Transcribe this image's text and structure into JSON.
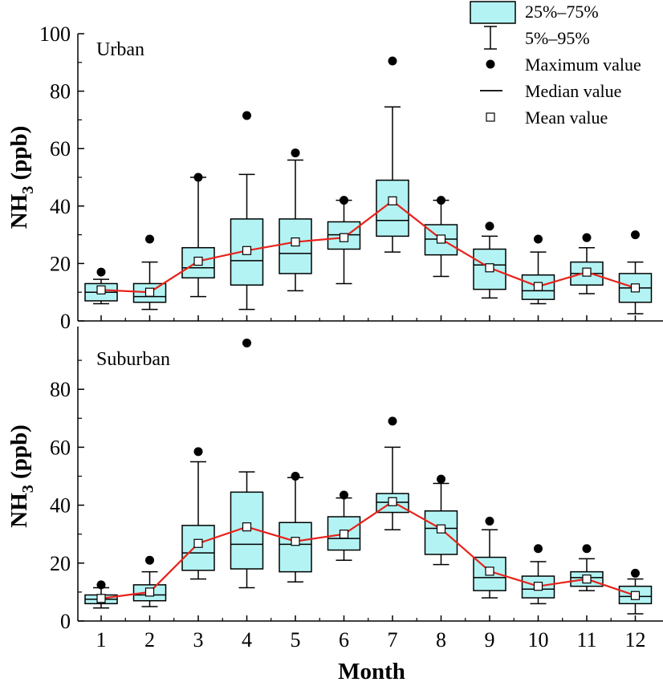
{
  "chart_data": [
    {
      "type": "box",
      "panel_label": "Urban",
      "ylabel_base": "NH",
      "ylabel_sub": "3",
      "ylabel_unit": " (ppb)",
      "xlabel": "",
      "ylim": [
        0,
        100
      ],
      "yticks": [
        0,
        20,
        40,
        60,
        80,
        100
      ],
      "categories": [
        "1",
        "2",
        "3",
        "4",
        "5",
        "6",
        "7",
        "8",
        "9",
        "10",
        "11",
        "12"
      ],
      "boxes": [
        {
          "p5": 6.0,
          "q1": 7.0,
          "median": 10.0,
          "q3": 13.0,
          "p95": 14.5,
          "max": 17.0,
          "mean": 10.8
        },
        {
          "p5": 4.0,
          "q1": 6.5,
          "median": 8.5,
          "q3": 13.0,
          "p95": 20.5,
          "max": 28.5,
          "mean": 10.0
        },
        {
          "p5": 8.5,
          "q1": 15.0,
          "median": 18.5,
          "q3": 25.5,
          "p95": 50.0,
          "max": 50.0,
          "mean": 20.8
        },
        {
          "p5": 4.0,
          "q1": 12.5,
          "median": 21.0,
          "q3": 35.5,
          "p95": 51.0,
          "max": 71.5,
          "mean": 24.5
        },
        {
          "p5": 10.5,
          "q1": 16.5,
          "median": 23.5,
          "q3": 35.5,
          "p95": 56.0,
          "max": 58.5,
          "mean": 27.5
        },
        {
          "p5": 13.0,
          "q1": 25.0,
          "median": 30.0,
          "q3": 34.5,
          "p95": 42.0,
          "max": 42.0,
          "mean": 29.0
        },
        {
          "p5": 24.0,
          "q1": 29.5,
          "median": 35.0,
          "q3": 49.0,
          "p95": 74.5,
          "max": 90.5,
          "mean": 41.8
        },
        {
          "p5": 15.5,
          "q1": 23.0,
          "median": 28.5,
          "q3": 33.5,
          "p95": 42.0,
          "max": 42.0,
          "mean": 28.5
        },
        {
          "p5": 8.0,
          "q1": 11.0,
          "median": 19.5,
          "q3": 25.0,
          "p95": 29.5,
          "max": 33.0,
          "mean": 18.5
        },
        {
          "p5": 6.0,
          "q1": 7.5,
          "median": 10.5,
          "q3": 16.0,
          "p95": 24.0,
          "max": 28.5,
          "mean": 12.0
        },
        {
          "p5": 9.5,
          "q1": 12.5,
          "median": 16.5,
          "q3": 20.5,
          "p95": 25.5,
          "max": 29.0,
          "mean": 17.0
        },
        {
          "p5": 2.5,
          "q1": 6.5,
          "median": 11.5,
          "q3": 16.5,
          "p95": 20.5,
          "max": 30.0,
          "mean": 11.5
        }
      ]
    },
    {
      "type": "box",
      "panel_label": "Suburban",
      "ylabel_base": "NH",
      "ylabel_sub": "3",
      "ylabel_unit": " (ppb)",
      "xlabel": "Month",
      "ylim": [
        0,
        100
      ],
      "yticks": [
        0,
        20,
        40,
        60,
        80
      ],
      "categories": [
        "1",
        "2",
        "3",
        "4",
        "5",
        "6",
        "7",
        "8",
        "9",
        "10",
        "11",
        "12"
      ],
      "boxes": [
        {
          "p5": 4.5,
          "q1": 6.0,
          "median": 7.5,
          "q3": 9.0,
          "p95": 11.5,
          "max": 12.5,
          "mean": 7.8
        },
        {
          "p5": 5.0,
          "q1": 7.0,
          "median": 9.0,
          "q3": 12.5,
          "p95": 17.0,
          "max": 21.0,
          "mean": 10.0
        },
        {
          "p5": 14.5,
          "q1": 17.5,
          "median": 23.5,
          "q3": 33.0,
          "p95": 55.0,
          "max": 58.5,
          "mean": 26.8
        },
        {
          "p5": 11.5,
          "q1": 18.0,
          "median": 26.5,
          "q3": 44.5,
          "p95": 51.5,
          "max": 96.0,
          "mean": 32.5
        },
        {
          "p5": 13.5,
          "q1": 17.0,
          "median": 26.5,
          "q3": 34.0,
          "p95": 49.5,
          "max": 50.0,
          "mean": 27.5
        },
        {
          "p5": 21.0,
          "q1": 24.5,
          "median": 28.5,
          "q3": 36.0,
          "p95": 42.5,
          "max": 43.5,
          "mean": 30.0
        },
        {
          "p5": 31.5,
          "q1": 37.5,
          "median": 41.0,
          "q3": 44.0,
          "p95": 60.0,
          "max": 69.0,
          "mean": 41.2
        },
        {
          "p5": 19.5,
          "q1": 23.0,
          "median": 32.0,
          "q3": 38.0,
          "p95": 47.5,
          "max": 49.0,
          "mean": 31.8
        },
        {
          "p5": 8.0,
          "q1": 10.5,
          "median": 15.0,
          "q3": 22.0,
          "p95": 31.5,
          "max": 34.5,
          "mean": 17.2
        },
        {
          "p5": 6.0,
          "q1": 8.0,
          "median": 11.0,
          "q3": 15.5,
          "p95": 20.5,
          "max": 25.0,
          "mean": 12.0
        },
        {
          "p5": 10.5,
          "q1": 12.0,
          "median": 15.0,
          "q3": 17.0,
          "p95": 21.5,
          "max": 25.0,
          "mean": 14.5
        },
        {
          "p5": 2.5,
          "q1": 6.0,
          "median": 8.5,
          "q3": 12.0,
          "p95": 14.5,
          "max": 16.5,
          "mean": 8.8
        }
      ]
    }
  ],
  "legend": {
    "placement": "top-right",
    "items": [
      {
        "label": "25%–75%",
        "kind": "box"
      },
      {
        "label": "5%–95%",
        "kind": "whisker"
      },
      {
        "label": "Maximum value",
        "kind": "max-dot"
      },
      {
        "label": "Median value",
        "kind": "median-line"
      },
      {
        "label": "Mean value",
        "kind": "mean-square"
      }
    ]
  },
  "colors": {
    "box_fill": "#b3f3f3",
    "mean_line": "#e8221b",
    "stroke": "#000000"
  }
}
